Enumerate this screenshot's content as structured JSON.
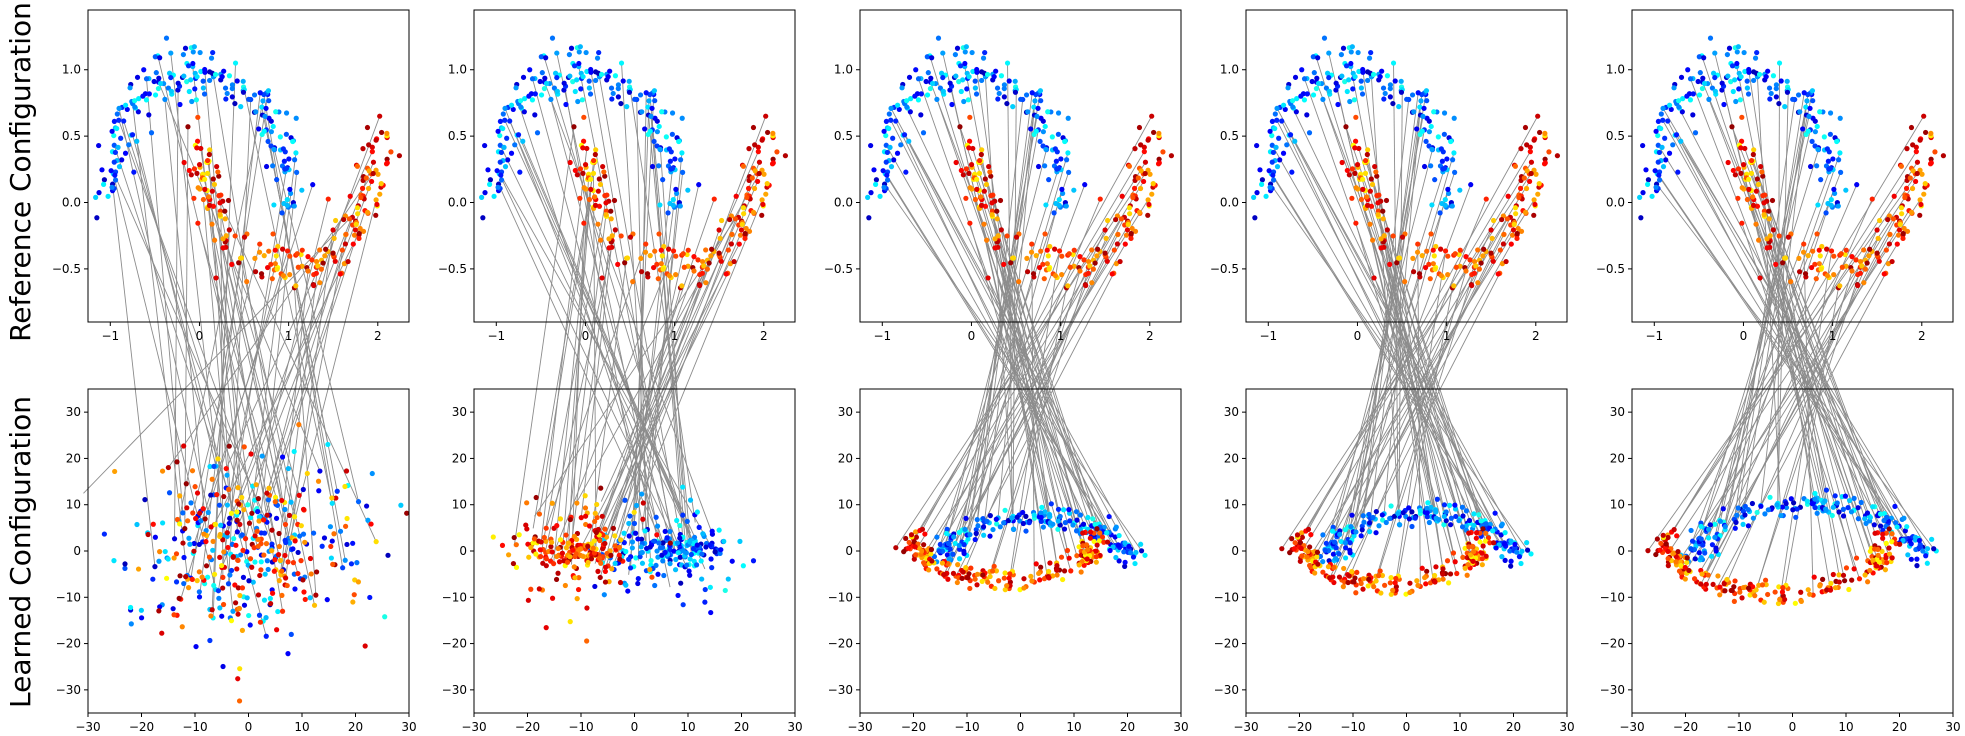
{
  "chart_data": {
    "type": "scatter",
    "description_grid": "2 rows x 5 columns of scatter panels with grey correspondence lines between rows",
    "row_labels": [
      "Reference Configuration",
      "Learned Configuration"
    ],
    "colormap": "jet",
    "reference": {
      "xlim": [
        -1.25,
        2.35
      ],
      "ylim": [
        -0.9,
        1.45
      ],
      "xticks": [
        -1,
        0,
        1,
        2
      ],
      "xtick_labels": [
        "−1",
        "0",
        "1",
        "2"
      ],
      "yticks": [
        -0.5,
        0.0,
        0.5,
        1.0
      ],
      "ytick_labels": [
        "−0.5",
        "0.0",
        "0.5",
        "1.0"
      ],
      "series": [
        {
          "name": "upper moon",
          "shape": "arc",
          "center_x": 0,
          "center_y": 0,
          "radius": 1,
          "color_range": "blue-cyan"
        },
        {
          "name": "lower moon",
          "shape": "arc",
          "center_x": 1,
          "center_y": 0.5,
          "radius": 1,
          "color_range": "yellow-red"
        }
      ]
    },
    "learned": {
      "xlim": [
        -30,
        30
      ],
      "ylim": [
        -35,
        35
      ],
      "xticks": [
        -30,
        -20,
        -10,
        0,
        10,
        20,
        30
      ],
      "xtick_labels": [
        "−30",
        "−20",
        "−10",
        "0",
        "10",
        "20",
        "30"
      ],
      "yticks": [
        -30,
        -20,
        -10,
        0,
        10,
        20,
        30
      ],
      "ytick_labels": [
        "−30",
        "−20",
        "−10",
        "0",
        "10",
        "20",
        "30"
      ],
      "panels": [
        {
          "stage": 1,
          "pattern": "random cloud",
          "spread_x": 11,
          "spread_y": 10
        },
        {
          "stage": 2,
          "pattern": "flattened band",
          "spread_x": 12,
          "spread_y": 6
        },
        {
          "stage": 3,
          "pattern": "two moons",
          "moon_scale_x": 18,
          "moon_scale_y": 9
        },
        {
          "stage": 4,
          "pattern": "two moons",
          "moon_scale_x": 18,
          "moon_scale_y": 10
        },
        {
          "stage": 5,
          "pattern": "two moons",
          "moon_scale_x": 22,
          "moon_scale_y": 12
        }
      ]
    }
  }
}
